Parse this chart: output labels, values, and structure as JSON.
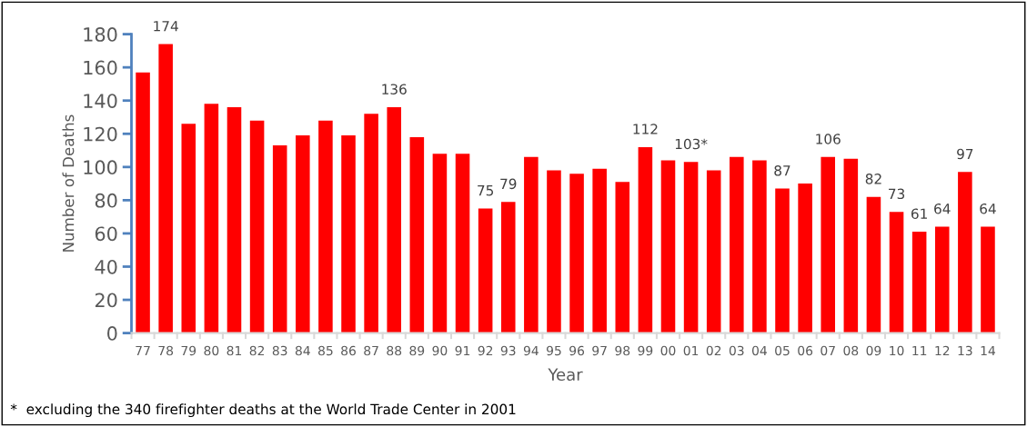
{
  "chart_data": {
    "type": "bar",
    "xlabel": "Year",
    "ylabel": "Number of Deaths",
    "categories": [
      "77",
      "78",
      "79",
      "80",
      "81",
      "82",
      "83",
      "84",
      "85",
      "86",
      "87",
      "88",
      "89",
      "90",
      "91",
      "92",
      "93",
      "94",
      "95",
      "96",
      "97",
      "98",
      "99",
      "00",
      "01",
      "02",
      "03",
      "04",
      "05",
      "06",
      "07",
      "08",
      "09",
      "10",
      "11",
      "12",
      "13",
      "14"
    ],
    "values": [
      157,
      174,
      126,
      138,
      136,
      128,
      113,
      119,
      128,
      119,
      132,
      136,
      118,
      108,
      108,
      75,
      79,
      106,
      98,
      96,
      99,
      91,
      112,
      104,
      103,
      98,
      106,
      104,
      87,
      90,
      106,
      105,
      82,
      73,
      61,
      64,
      97,
      64
    ],
    "value_labels": [
      null,
      "174",
      null,
      null,
      null,
      null,
      null,
      null,
      null,
      null,
      null,
      "136",
      null,
      null,
      null,
      "75",
      "79",
      null,
      null,
      null,
      null,
      null,
      "112",
      null,
      "103*",
      null,
      null,
      null,
      "87",
      null,
      "106",
      null,
      "82",
      "73",
      "61",
      "64",
      "97",
      "64"
    ],
    "color": "#ff0000",
    "ylim": [
      0,
      180
    ],
    "yticks": [
      0,
      20,
      40,
      60,
      80,
      100,
      120,
      140,
      160,
      180
    ],
    "grid": false,
    "legend": false,
    "annotations": [
      "*  excluding the 340 firefighter deaths at the World Trade Center in 2001"
    ]
  }
}
